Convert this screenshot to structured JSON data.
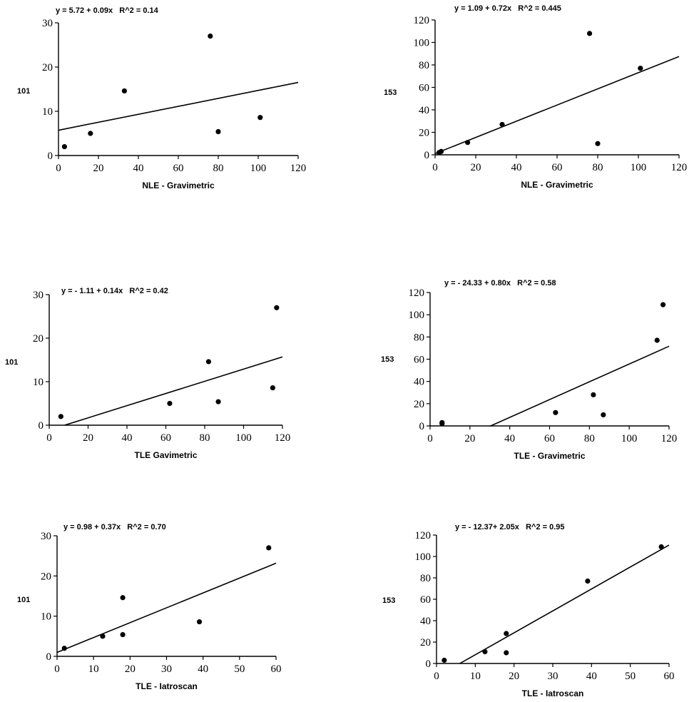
{
  "chart_data": [
    {
      "type": "scatter",
      "title": "y = 5.72 + 0.09x   R^2 = 0.14",
      "xlabel": "NLE - Gravimetric",
      "ylabel": "101",
      "xlim": [
        0,
        120
      ],
      "ylim": [
        0,
        30
      ],
      "xticks": [
        "0",
        "20",
        "40",
        "60",
        "80",
        "100",
        "120"
      ],
      "yticks": [
        "0",
        "10",
        "20",
        "30"
      ],
      "points": [
        [
          3,
          2
        ],
        [
          16,
          5
        ],
        [
          33,
          14.6
        ],
        [
          76,
          27
        ],
        [
          80,
          5.4
        ],
        [
          101,
          8.6
        ]
      ],
      "fit": {
        "intercept": 5.72,
        "slope": 0.09,
        "x0": 0,
        "x1": 120
      }
    },
    {
      "type": "scatter",
      "title": "y = 1.09 + 0.72x   R^2 = 0.445",
      "xlabel": "NLE - Gravimetric",
      "ylabel": "153",
      "xlim": [
        0,
        120
      ],
      "ylim": [
        0,
        120
      ],
      "xticks": [
        "0",
        "20",
        "40",
        "60",
        "80",
        "100",
        "120"
      ],
      "yticks": [
        "0",
        "20",
        "40",
        "60",
        "80",
        "100",
        "120"
      ],
      "points": [
        [
          2,
          2
        ],
        [
          3,
          3
        ],
        [
          16,
          11
        ],
        [
          33,
          27
        ],
        [
          76,
          108
        ],
        [
          80,
          10
        ],
        [
          101,
          77
        ]
      ],
      "fit": {
        "intercept": 1.09,
        "slope": 0.72,
        "x0": 0,
        "x1": 120
      }
    },
    {
      "type": "scatter",
      "title": "y = - 1.11 + 0.14x   R^2 = 0.42",
      "xlabel": "TLE Gavimetric",
      "ylabel": "101",
      "xlim": [
        0,
        120
      ],
      "ylim": [
        0,
        30
      ],
      "xticks": [
        "0",
        "20",
        "40",
        "60",
        "80",
        "100",
        "120"
      ],
      "yticks": [
        "0",
        "10",
        "20",
        "30"
      ],
      "points": [
        [
          6,
          2
        ],
        [
          62,
          5
        ],
        [
          82,
          14.6
        ],
        [
          87,
          5.4
        ],
        [
          115,
          8.6
        ],
        [
          117,
          27
        ]
      ],
      "fit": {
        "intercept": -1.11,
        "slope": 0.14,
        "x0": 8,
        "x1": 120
      }
    },
    {
      "type": "scatter",
      "title": "y = - 24.33 + 0.80x   R^2 = 0.58",
      "xlabel": "TLE - Gravimetric",
      "ylabel": "153",
      "xlim": [
        0,
        120
      ],
      "ylim": [
        0,
        120
      ],
      "xticks": [
        "0",
        "20",
        "40",
        "60",
        "80",
        "100",
        "120"
      ],
      "yticks": [
        "0",
        "20",
        "40",
        "60",
        "80",
        "100",
        "120"
      ],
      "points": [
        [
          6,
          2
        ],
        [
          6,
          3
        ],
        [
          63,
          12
        ],
        [
          82,
          28
        ],
        [
          87,
          10
        ],
        [
          114,
          77
        ],
        [
          117,
          109
        ]
      ],
      "fit": {
        "intercept": -24.33,
        "slope": 0.8,
        "x0": 30,
        "x1": 120
      }
    },
    {
      "type": "scatter",
      "title": "y = 0.98 + 0.37x   R^2 = 0.70",
      "xlabel": "TLE - Iatroscan",
      "ylabel": "101",
      "xlim": [
        0,
        60
      ],
      "ylim": [
        0,
        30
      ],
      "xticks": [
        "0",
        "10",
        "20",
        "30",
        "40",
        "50",
        "60"
      ],
      "yticks": [
        "0",
        "10",
        "20",
        "30"
      ],
      "points": [
        [
          2,
          2
        ],
        [
          12.5,
          5
        ],
        [
          18,
          14.6
        ],
        [
          18,
          5.4
        ],
        [
          39,
          8.6
        ],
        [
          58,
          27
        ]
      ],
      "fit": {
        "intercept": 0.98,
        "slope": 0.37,
        "x0": 0,
        "x1": 60
      }
    },
    {
      "type": "scatter",
      "title": "y = - 12.37+ 2.05x   R^2 = 0.95",
      "xlabel": "TLE - Iatroscan",
      "ylabel": "153",
      "xlim": [
        0,
        60
      ],
      "ylim": [
        0,
        120
      ],
      "xticks": [
        "0",
        "10",
        "20",
        "30",
        "40",
        "50",
        "60"
      ],
      "yticks": [
        "0",
        "20",
        "40",
        "60",
        "80",
        "100",
        "120"
      ],
      "points": [
        [
          2,
          3
        ],
        [
          12.5,
          11
        ],
        [
          18,
          28
        ],
        [
          18,
          10
        ],
        [
          39,
          77
        ],
        [
          58,
          109
        ]
      ],
      "fit": {
        "intercept": -12.37,
        "slope": 2.05,
        "x0": 6,
        "x1": 60
      }
    }
  ]
}
